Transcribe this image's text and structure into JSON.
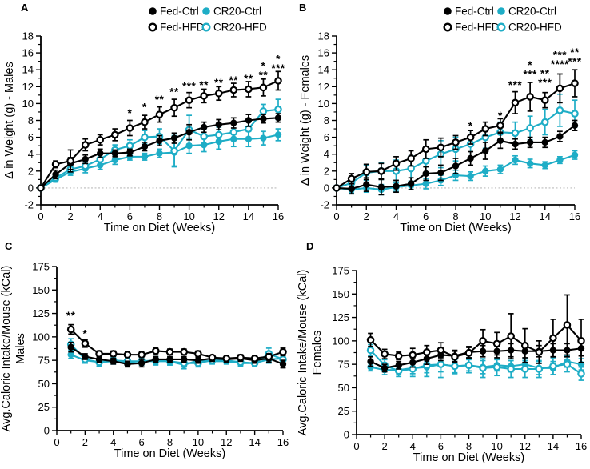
{
  "figure": {
    "background": "#ffffff",
    "colors": {
      "black": "#000000",
      "teal": "#1EADC6",
      "zero_line": "#aaaaaa"
    },
    "legend": {
      "rows": [
        [
          {
            "label": "Fed-Ctrl",
            "color": "black",
            "filled": true
          },
          {
            "label": "CR20-Ctrl",
            "color": "teal",
            "filled": true
          }
        ],
        [
          {
            "label": "Fed-HFD",
            "color": "black",
            "filled": false
          },
          {
            "label": "CR20-HFD",
            "color": "teal",
            "filled": false
          }
        ]
      ]
    }
  },
  "chart_data": [
    {
      "panel": "A",
      "type": "line",
      "xlabel": "Time on Diet (Weeks)",
      "ylabel_lines": [
        "Δ in Weight (g) - Males"
      ],
      "xlim": [
        0,
        16
      ],
      "ylim": [
        -2,
        18
      ],
      "xticks": [
        0,
        2,
        4,
        6,
        8,
        10,
        12,
        14,
        16
      ],
      "yticks": [
        -2,
        0,
        2,
        4,
        6,
        8,
        10,
        12,
        14,
        16,
        18
      ],
      "x": [
        0,
        1,
        2,
        3,
        4,
        5,
        6,
        7,
        8,
        9,
        10,
        11,
        12,
        13,
        14,
        15,
        16
      ],
      "zero_line": true,
      "show_legend": true,
      "series": [
        {
          "name": "CR20-Ctrl",
          "color": "teal",
          "filled": true,
          "values": [
            0,
            1.0,
            1.9,
            2.3,
            2.7,
            3.3,
            3.7,
            3.7,
            4.1,
            4.2,
            5.0,
            5.1,
            5.5,
            5.8,
            5.8,
            5.9,
            6.3
          ],
          "errors": [
            0,
            0.3,
            0.4,
            0.5,
            0.5,
            0.5,
            0.4,
            0.4,
            0.5,
            1.7,
            0.9,
            0.8,
            0.9,
            0.9,
            0.9,
            0.8,
            0.7
          ]
        },
        {
          "name": "CR20-HFD",
          "color": "teal",
          "filled": false,
          "values": [
            0,
            1.2,
            2.2,
            2.6,
            3.4,
            4.5,
            5.0,
            6.0,
            6.1,
            4.4,
            6.9,
            6.1,
            6.3,
            6.6,
            7.0,
            9.1,
            9.3
          ],
          "errors": [
            0,
            0.3,
            0.5,
            0.5,
            0.6,
            0.6,
            0.7,
            0.8,
            0.9,
            1.8,
            1.7,
            0.9,
            0.9,
            1.0,
            1.0,
            0.8,
            1.2
          ]
        },
        {
          "name": "Fed-Ctrl",
          "color": "black",
          "filled": true,
          "values": [
            0,
            1.6,
            2.9,
            3.4,
            4.1,
            4.1,
            4.2,
            4.9,
            5.6,
            5.9,
            6.6,
            7.2,
            7.5,
            7.7,
            8.0,
            8.2,
            8.3
          ],
          "errors": [
            0,
            0.5,
            0.7,
            0.5,
            0.5,
            0.4,
            0.4,
            0.5,
            0.6,
            0.6,
            0.9,
            0.6,
            0.6,
            0.6,
            0.7,
            0.5,
            0.5
          ]
        },
        {
          "name": "Fed-HFD",
          "color": "black",
          "filled": false,
          "values": [
            0,
            2.8,
            3.2,
            5.1,
            5.7,
            6.3,
            7.1,
            7.8,
            8.7,
            9.5,
            10.4,
            10.9,
            11.2,
            11.6,
            11.7,
            11.9,
            12.7
          ],
          "errors": [
            0,
            0.4,
            1.3,
            0.7,
            0.6,
            0.7,
            0.9,
            0.8,
            0.9,
            1.0,
            0.9,
            0.8,
            0.8,
            0.8,
            0.9,
            1.0,
            1.1
          ]
        }
      ],
      "significance": [
        {
          "week": 6,
          "value": 8.8,
          "text": "*",
          "color": "black"
        },
        {
          "week": 7,
          "value": 9.5,
          "text": "*",
          "color": "black"
        },
        {
          "week": 8,
          "value": 10.4,
          "text": "**",
          "color": "black"
        },
        {
          "week": 9,
          "value": 11.3,
          "text": "**",
          "color": "black"
        },
        {
          "week": 10,
          "value": 12.0,
          "text": "***",
          "color": "black"
        },
        {
          "week": 11,
          "value": 12.1,
          "text": "**",
          "color": "black"
        },
        {
          "week": 12,
          "value": 12.4,
          "text": "**",
          "color": "black"
        },
        {
          "week": 13,
          "value": 12.7,
          "text": "**",
          "color": "black"
        },
        {
          "week": 14,
          "value": 12.9,
          "text": "**",
          "color": "black"
        },
        {
          "week": 15,
          "value": 13.3,
          "text": "**",
          "color": "black"
        },
        {
          "week": 15,
          "value": 14.4,
          "text": "*",
          "color": "teal"
        },
        {
          "week": 16,
          "value": 14.1,
          "text": "***",
          "color": "black"
        },
        {
          "week": 16,
          "value": 15.2,
          "text": "*",
          "color": "teal"
        }
      ]
    },
    {
      "panel": "B",
      "type": "line",
      "xlabel": "Time on Diet (Weeks)",
      "ylabel_lines": [
        "Δ in Weight (g) - Females"
      ],
      "xlim": [
        0,
        16
      ],
      "ylim": [
        -2,
        18
      ],
      "xticks": [
        0,
        2,
        4,
        6,
        8,
        10,
        12,
        14,
        16
      ],
      "yticks": [
        -2,
        0,
        2,
        4,
        6,
        8,
        10,
        12,
        14,
        16,
        18
      ],
      "x": [
        0,
        1,
        2,
        3,
        4,
        5,
        6,
        7,
        8,
        9,
        10,
        11,
        12,
        13,
        14,
        15,
        16
      ],
      "zero_line": true,
      "show_legend": true,
      "series": [
        {
          "name": "CR20-Ctrl",
          "color": "teal",
          "filled": true,
          "values": [
            0,
            -0.2,
            0.0,
            -0.2,
            0.1,
            0.3,
            0.5,
            0.9,
            1.5,
            1.4,
            2.0,
            2.2,
            3.3,
            2.9,
            2.7,
            3.3,
            3.9
          ],
          "errors": [
            0,
            0.4,
            0.5,
            0.6,
            0.5,
            0.5,
            0.6,
            0.6,
            0.6,
            0.5,
            0.6,
            0.5,
            0.5,
            0.5,
            0.4,
            0.4,
            0.5
          ]
        },
        {
          "name": "CR20-HFD",
          "color": "teal",
          "filled": false,
          "values": [
            0,
            0.6,
            1.8,
            2.0,
            2.0,
            2.3,
            3.2,
            4.0,
            4.6,
            5.2,
            6.0,
            6.6,
            6.5,
            7.1,
            7.8,
            9.2,
            8.8
          ],
          "errors": [
            0,
            0.5,
            0.9,
            1.0,
            1.3,
            1.5,
            1.5,
            1.6,
            1.4,
            1.6,
            1.3,
            1.2,
            1.3,
            1.4,
            1.5,
            1.9,
            1.6
          ]
        },
        {
          "name": "Fed-Ctrl",
          "color": "black",
          "filled": true,
          "values": [
            0,
            -0.1,
            0.4,
            0.1,
            0.2,
            0.5,
            1.7,
            1.8,
            2.6,
            3.5,
            4.4,
            5.6,
            5.2,
            5.4,
            5.4,
            6.1,
            7.4
          ],
          "errors": [
            0,
            0.6,
            0.8,
            0.9,
            0.7,
            0.7,
            0.8,
            0.9,
            0.9,
            0.8,
            1.0,
            0.9,
            0.6,
            0.6,
            0.6,
            0.6,
            0.6
          ]
        },
        {
          "name": "Fed-HFD",
          "color": "black",
          "filled": false,
          "values": [
            0,
            1.1,
            1.9,
            2.0,
            2.9,
            3.5,
            4.6,
            4.8,
            5.4,
            6.0,
            7.0,
            7.4,
            10.1,
            10.8,
            10.4,
            11.8,
            12.4
          ],
          "errors": [
            0,
            0.6,
            0.9,
            0.9,
            0.8,
            0.9,
            1.1,
            1.1,
            0.8,
            0.8,
            0.8,
            0.8,
            1.3,
            1.7,
            0.9,
            1.7,
            1.6
          ]
        }
      ],
      "significance": [
        {
          "week": 9,
          "value": 7.3,
          "text": "*",
          "color": "teal"
        },
        {
          "week": 11,
          "value": 8.5,
          "text": "*",
          "color": "teal"
        },
        {
          "week": 12,
          "value": 12.1,
          "text": "***",
          "color": "black"
        },
        {
          "week": 13,
          "value": 13.4,
          "text": "***",
          "color": "black"
        },
        {
          "week": 13,
          "value": 14.5,
          "text": "*",
          "color": "teal"
        },
        {
          "week": 14,
          "value": 12.4,
          "text": "***",
          "color": "black"
        },
        {
          "week": 14,
          "value": 13.5,
          "text": "**",
          "color": "teal"
        },
        {
          "week": 15,
          "value": 14.6,
          "text": "****",
          "color": "black"
        },
        {
          "week": 15,
          "value": 15.7,
          "text": "***",
          "color": "teal"
        },
        {
          "week": 16,
          "value": 14.9,
          "text": "***",
          "color": "black"
        },
        {
          "week": 16,
          "value": 16.0,
          "text": "**",
          "color": "teal"
        }
      ]
    },
    {
      "panel": "C",
      "type": "line",
      "xlabel": "Time on Diet (Weeks)",
      "ylabel_lines": [
        "Avg.Caloric Intake/Mouse (kCal)",
        "Males"
      ],
      "xlim": [
        0,
        16
      ],
      "ylim": [
        0,
        175
      ],
      "xticks": [
        0,
        2,
        4,
        6,
        8,
        10,
        12,
        14,
        16
      ],
      "yticks": [
        0,
        25,
        50,
        75,
        100,
        125,
        150,
        175
      ],
      "x": [
        1,
        2,
        3,
        4,
        5,
        6,
        7,
        8,
        9,
        10,
        11,
        12,
        13,
        14,
        15,
        16
      ],
      "zero_line": false,
      "show_legend": false,
      "series": [
        {
          "name": "CR20-Ctrl",
          "color": "teal",
          "filled": true,
          "values": [
            81,
            75,
            73,
            74,
            73,
            74,
            74,
            74,
            70,
            75,
            74,
            74,
            72,
            72,
            76,
            77
          ],
          "errors": [
            4,
            3,
            4,
            3,
            3,
            4,
            4,
            4,
            4,
            4,
            3,
            3,
            3,
            3,
            4,
            4
          ]
        },
        {
          "name": "CR20-HFD",
          "color": "teal",
          "filled": false,
          "values": [
            92,
            76,
            73,
            75,
            74,
            74,
            75,
            74,
            72,
            72,
            75,
            75,
            73,
            72,
            82,
            76
          ],
          "errors": [
            6,
            4,
            4,
            3,
            4,
            4,
            4,
            4,
            4,
            4,
            3,
            3,
            3,
            3,
            6,
            5
          ]
        },
        {
          "name": "Fed-Ctrl",
          "color": "black",
          "filled": true,
          "values": [
            89,
            79,
            76,
            74,
            71,
            72,
            76,
            76,
            76,
            75,
            77,
            76,
            77,
            75,
            77,
            71
          ],
          "errors": [
            5,
            3,
            3,
            3,
            3,
            4,
            3,
            3,
            3,
            3,
            3,
            3,
            3,
            3,
            4,
            4
          ]
        },
        {
          "name": "Fed-HFD",
          "color": "black",
          "filled": false,
          "values": [
            108,
            93,
            82,
            82,
            81,
            81,
            85,
            84,
            84,
            82,
            78,
            77,
            78,
            77,
            79,
            84
          ],
          "errors": [
            5,
            4,
            3,
            3,
            3,
            3,
            3,
            3,
            3,
            3,
            2,
            2,
            3,
            3,
            3,
            4
          ]
        }
      ],
      "significance": [
        {
          "week": 1,
          "value": 122,
          "text": "**",
          "color": "black"
        },
        {
          "week": 2,
          "value": 103,
          "text": "*",
          "color": "black"
        }
      ]
    },
    {
      "panel": "D",
      "type": "line",
      "xlabel": "Time on Diet (Weeks)",
      "ylabel_lines": [
        "Avg.Caloric Intake/Mouse (kCal)",
        "Females"
      ],
      "xlim": [
        0,
        16
      ],
      "ylim": [
        0,
        175
      ],
      "xticks": [
        0,
        2,
        4,
        6,
        8,
        10,
        12,
        14,
        16
      ],
      "yticks": [
        0,
        25,
        50,
        75,
        100,
        125,
        150,
        175
      ],
      "x": [
        1,
        2,
        3,
        4,
        5,
        6,
        7,
        8,
        9,
        10,
        11,
        12,
        13,
        14,
        15,
        16
      ],
      "zero_line": false,
      "show_legend": false,
      "series": [
        {
          "name": "CR20-Ctrl",
          "color": "teal",
          "filled": true,
          "values": [
            72,
            69,
            69,
            71,
            72,
            75,
            73,
            74,
            72,
            74,
            73,
            75,
            71,
            71,
            78,
            75
          ],
          "errors": [
            4,
            5,
            5,
            6,
            6,
            8,
            7,
            6,
            7,
            6,
            6,
            6,
            7,
            7,
            6,
            6
          ]
        },
        {
          "name": "CR20-HFD",
          "color": "teal",
          "filled": false,
          "values": [
            90,
            74,
            68,
            70,
            74,
            75,
            73,
            74,
            71,
            72,
            70,
            70,
            70,
            73,
            75,
            65
          ],
          "errors": [
            6,
            6,
            6,
            8,
            12,
            14,
            8,
            8,
            10,
            9,
            9,
            9,
            9,
            9,
            8,
            7
          ]
        },
        {
          "name": "Fed-Ctrl",
          "color": "black",
          "filled": true,
          "values": [
            78,
            71,
            74,
            77,
            81,
            85,
            84,
            88,
            89,
            89,
            90,
            89,
            89,
            90,
            90,
            92
          ],
          "errors": [
            5,
            4,
            4,
            5,
            6,
            6,
            6,
            6,
            6,
            7,
            7,
            7,
            6,
            7,
            7,
            8
          ]
        },
        {
          "name": "Fed-HFD",
          "color": "black",
          "filled": false,
          "values": [
            101,
            86,
            84,
            85,
            88,
            90,
            83,
            87,
            100,
            97,
            105,
            95,
            88,
            103,
            117,
            100
          ],
          "errors": [
            7,
            5,
            4,
            7,
            7,
            8,
            6,
            6,
            12,
            12,
            24,
            18,
            12,
            20,
            32,
            23
          ]
        }
      ],
      "significance": []
    }
  ]
}
